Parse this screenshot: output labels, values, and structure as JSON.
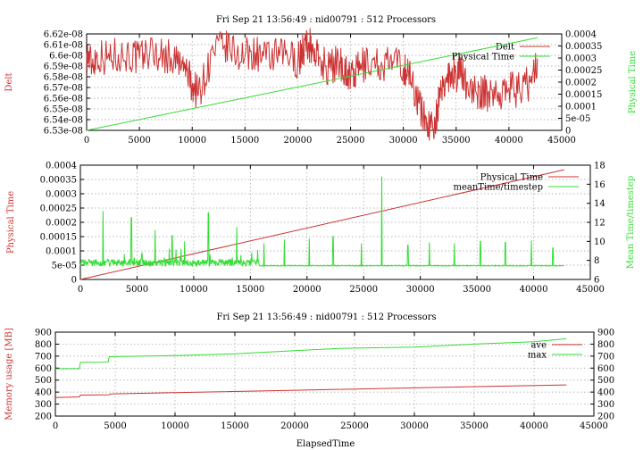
{
  "colors": {
    "red": "#cc3333",
    "green": "#33dd33"
  },
  "chart_data": [
    {
      "type": "line",
      "title": "Fri Sep 21 13:56:49 : nid00791 : 512 Processors",
      "xlabel": "",
      "ylabel": "Delt",
      "y2label": "Physical Time",
      "xlim": [
        0,
        45000
      ],
      "ylim": [
        6.53e-08,
        6.62e-08
      ],
      "y2lim": [
        0,
        0.0004
      ],
      "x_ticks": [
        "0",
        "5000",
        "10000",
        "15000",
        "20000",
        "25000",
        "30000",
        "35000",
        "40000",
        "45000"
      ],
      "y_ticks": [
        "6.53e-08",
        "6.54e-08",
        "6.55e-08",
        "6.56e-08",
        "6.57e-08",
        "6.58e-08",
        "6.59e-08",
        "6.6e-08",
        "6.61e-08",
        "6.62e-08"
      ],
      "y2_ticks": [
        "0",
        "5e-05",
        "0.0001",
        "0.00015",
        "0.0002",
        "0.00025",
        "0.0003",
        "0.00035",
        "0.0004"
      ],
      "grid": true,
      "legend": "top-right",
      "series": [
        {
          "name": "Delt",
          "axis": "y",
          "color": "red",
          "x": [
            0,
            500,
            1000,
            2000,
            3000,
            4000,
            5000,
            6000,
            7000,
            8000,
            9000,
            9500,
            10000,
            10500,
            11000,
            12000,
            13000,
            14000,
            15000,
            16000,
            17000,
            18000,
            19000,
            20000,
            20500,
            21000,
            21500,
            22000,
            23000,
            24000,
            24500,
            25000,
            25500,
            26000,
            27000,
            28000,
            29000,
            30000,
            30500,
            31000,
            31500,
            32000,
            32500,
            33000,
            33500,
            34000,
            34500,
            35000,
            35500,
            36000,
            37000,
            37500,
            38000,
            39000,
            40000,
            41000,
            42000,
            42700
          ],
          "y": [
            6.602e-08,
            6.592e-08,
            6.6e-08,
            6.598e-08,
            6.601e-08,
            6.6e-08,
            6.597e-08,
            6.604e-08,
            6.6e-08,
            6.598e-08,
            6.59e-08,
            6.585e-08,
            6.572e-08,
            6.566e-08,
            6.574e-08,
            6.603e-08,
            6.608e-08,
            6.603e-08,
            6.599e-08,
            6.603e-08,
            6.596e-08,
            6.599e-08,
            6.6e-08,
            6.595e-08,
            6.605e-08,
            6.611e-08,
            6.604e-08,
            6.597e-08,
            6.588e-08,
            6.595e-08,
            6.586e-08,
            6.58e-08,
            6.583e-08,
            6.59e-08,
            6.594e-08,
            6.59e-08,
            6.594e-08,
            6.588e-08,
            6.584e-08,
            6.57e-08,
            6.555e-08,
            6.541e-08,
            6.534e-08,
            6.54e-08,
            6.56e-08,
            6.578e-08,
            6.585e-08,
            6.582e-08,
            6.584e-08,
            6.575e-08,
            6.562e-08,
            6.565e-08,
            6.564e-08,
            6.566e-08,
            6.57e-08,
            6.567e-08,
            6.575e-08,
            6.597e-08
          ]
        },
        {
          "name": "Physical Time",
          "axis": "y2",
          "color": "green",
          "x": [
            0,
            42700
          ],
          "y": [
            0,
            0.000384
          ]
        }
      ]
    },
    {
      "type": "line",
      "title": "",
      "xlabel": "",
      "ylabel": "Physical Time",
      "y2label": "Mean Time/timestep",
      "xlim": [
        0,
        45000
      ],
      "ylim": [
        0,
        0.0004
      ],
      "y2lim": [
        6,
        18
      ],
      "x_ticks": [
        "0",
        "5000",
        "10000",
        "15000",
        "20000",
        "25000",
        "30000",
        "35000",
        "40000",
        "45000"
      ],
      "y_ticks": [
        "0",
        "5e-05",
        "0.0001",
        "0.00015",
        "0.0002",
        "0.00025",
        "0.0003",
        "0.00035",
        "0.0004"
      ],
      "y2_ticks": [
        "6",
        "8",
        "10",
        "12",
        "14",
        "16",
        "18"
      ],
      "grid": true,
      "legend": "top-right",
      "series": [
        {
          "name": "Physical Time",
          "axis": "y",
          "color": "red",
          "x": [
            0,
            42700
          ],
          "y": [
            0,
            0.000384
          ]
        },
        {
          "name": "meanTime/timestep",
          "axis": "y2",
          "color": "green",
          "baseline": 7.5,
          "spikes_x": [
            2000,
            4500,
            6600,
            8100,
            9200,
            11300,
            13800,
            16200,
            18000,
            20200,
            22300,
            24800,
            26600,
            28900,
            30800,
            33000,
            35300,
            37500,
            39800,
            41700
          ],
          "spikes_y": [
            13.2,
            12.5,
            11.2,
            10.6,
            10.0,
            13.0,
            11.5,
            9.8,
            10.2,
            10.3,
            10.5,
            9.8,
            16.8,
            9.6,
            9.9,
            9.8,
            10.0,
            9.9,
            10.1,
            9.3
          ],
          "noise_range_x": [
            0,
            15800
          ]
        }
      ]
    },
    {
      "type": "line",
      "title": "Fri Sep 21 13:56:49 : nid00791 : 512 Processors",
      "xlabel": "ElapsedTime",
      "ylabel": "Memory usage [MB]",
      "y2label": "",
      "xlim": [
        0,
        45000
      ],
      "ylim": [
        200,
        900
      ],
      "y2lim": [
        200,
        900
      ],
      "x_ticks": [
        "0",
        "5000",
        "10000",
        "15000",
        "20000",
        "25000",
        "30000",
        "35000",
        "40000",
        "45000"
      ],
      "y_ticks": [
        "200",
        "300",
        "400",
        "500",
        "600",
        "700",
        "800",
        "900"
      ],
      "y2_ticks": [
        "200",
        "300",
        "400",
        "500",
        "600",
        "700",
        "800",
        "900"
      ],
      "grid": true,
      "legend": "top-right",
      "series": [
        {
          "name": "ave",
          "axis": "y",
          "color": "red",
          "x": [
            0,
            2000,
            2100,
            4500,
            4600,
            10000,
            20000,
            30000,
            42700
          ],
          "y": [
            355,
            360,
            375,
            378,
            385,
            395,
            415,
            435,
            460
          ]
        },
        {
          "name": "max",
          "axis": "y",
          "color": "green",
          "x": [
            0,
            2000,
            2100,
            4400,
            4500,
            10000,
            15000,
            20000,
            24000,
            30000,
            35000,
            40000,
            42700
          ],
          "y": [
            595,
            595,
            648,
            650,
            695,
            705,
            720,
            745,
            765,
            775,
            800,
            820,
            845
          ]
        }
      ]
    }
  ]
}
